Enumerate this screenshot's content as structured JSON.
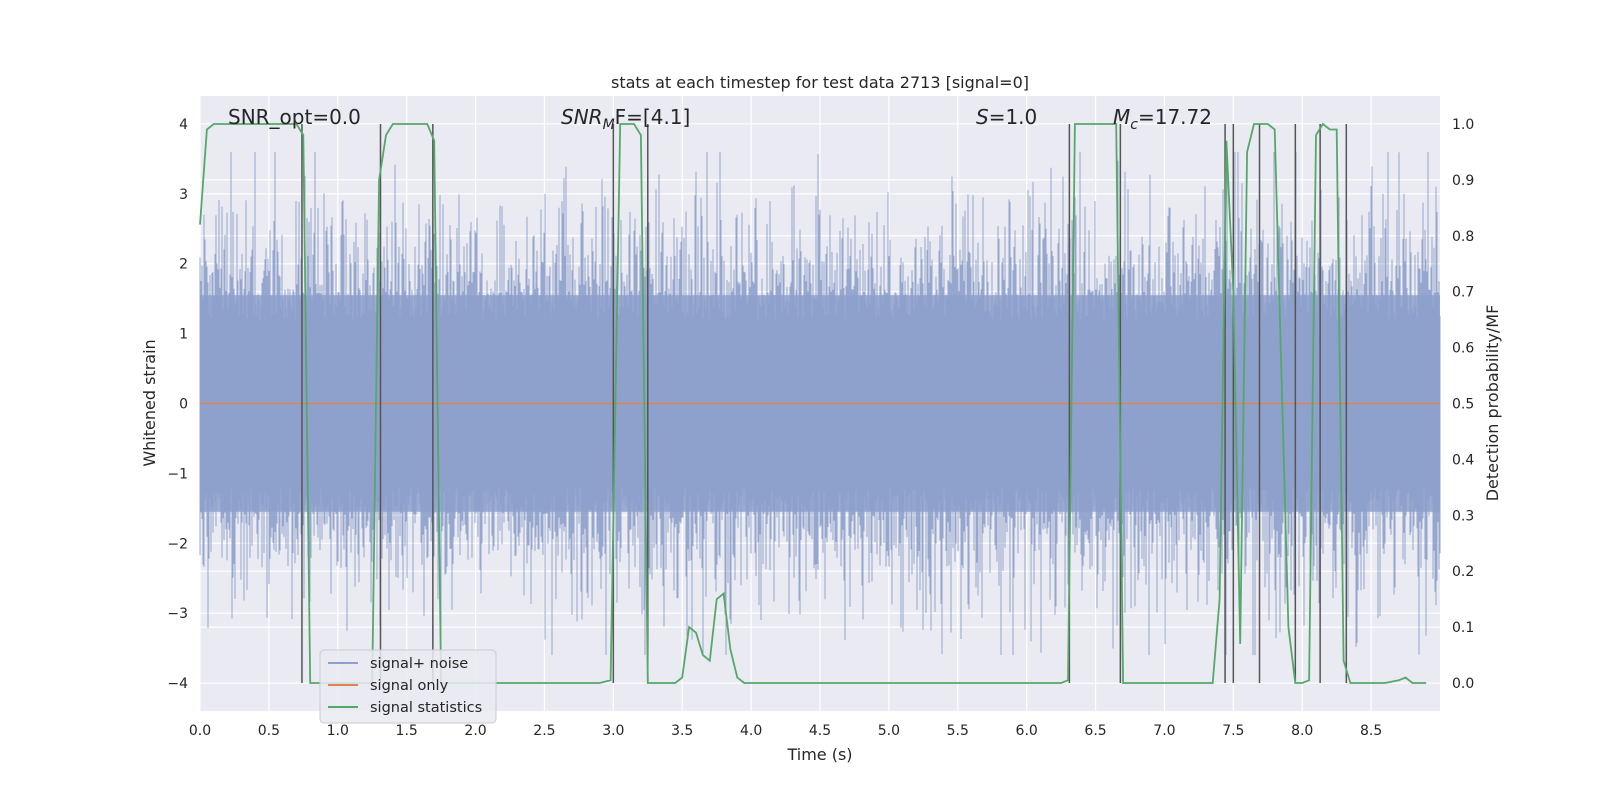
{
  "chart_data": {
    "type": "line",
    "title": "stats at each timestep for test data 2713 [signal=0]",
    "xlabel": "Time (s)",
    "ylabel_left": "Whitened strain",
    "ylabel_right": "Detection probability/MF",
    "xlim": [
      0,
      9
    ],
    "ylim_left": [
      -4.4,
      4.4
    ],
    "ylim_right": [
      -0.05,
      1.05
    ],
    "x_ticks": [
      "0.0",
      "0.5",
      "1.0",
      "1.5",
      "2.0",
      "2.5",
      "3.0",
      "3.5",
      "4.0",
      "4.5",
      "5.0",
      "5.5",
      "6.0",
      "6.5",
      "7.0",
      "7.5",
      "8.0",
      "8.5"
    ],
    "y_left_ticks": [
      "4",
      "3",
      "2",
      "1",
      "0",
      "−1",
      "−2",
      "−3",
      "−4"
    ],
    "y_right_ticks": [
      "1.0",
      "0.9",
      "0.8",
      "0.7",
      "0.6",
      "0.5",
      "0.4",
      "0.3",
      "0.2",
      "0.1",
      "0.0"
    ],
    "grid": true,
    "annotations": {
      "snr_opt": "SNR_opt=0.0",
      "snr_mf_base": "SNR",
      "snr_mf_sub": "M",
      "snr_mf_rest": "F=[4.1]",
      "s_var": "S",
      "s_rest": "=1.0",
      "mc_var": "M",
      "mc_sub": "c",
      "mc_rest": "=17.72"
    },
    "legend": {
      "placement": "lower-left",
      "entries": [
        "signal+ noise",
        "signal only",
        "signal statistics"
      ]
    },
    "colors": {
      "noise": "#8da0cb",
      "signal": "#dd8452",
      "stats": "#55a868",
      "vlines": "#555555",
      "background": "#eaeaf2"
    },
    "series": [
      {
        "name": "signal+ noise",
        "axis": "left",
        "description_values": "whitened strain noise, approx. ±2 typical, extremes to about ±3.5",
        "noise_amplitude_sigma": 1.0
      },
      {
        "name": "signal only",
        "axis": "left",
        "x": [
          0,
          9
        ],
        "y": [
          0,
          0
        ]
      },
      {
        "name": "signal statistics",
        "axis": "right",
        "x": [
          0.0,
          0.05,
          0.1,
          0.2,
          0.3,
          0.4,
          0.5,
          0.6,
          0.7,
          0.75,
          0.8,
          0.85,
          0.9,
          1.0,
          1.1,
          1.2,
          1.25,
          1.3,
          1.35,
          1.4,
          1.5,
          1.6,
          1.65,
          1.7,
          1.75,
          1.8,
          1.9,
          2.0,
          2.5,
          2.9,
          2.98,
          3.05,
          3.1,
          3.15,
          3.2,
          3.25,
          3.3,
          3.35,
          3.45,
          3.5,
          3.55,
          3.6,
          3.65,
          3.7,
          3.75,
          3.8,
          3.85,
          3.9,
          3.95,
          4.0,
          4.05,
          4.5,
          5.0,
          5.5,
          6.0,
          6.25,
          6.3,
          6.35,
          6.4,
          6.45,
          6.5,
          6.6,
          6.65,
          6.7,
          6.75,
          6.8,
          6.9,
          7.0,
          7.2,
          7.35,
          7.4,
          7.45,
          7.5,
          7.55,
          7.6,
          7.65,
          7.7,
          7.75,
          7.8,
          7.9,
          7.95,
          8.0,
          8.05,
          8.1,
          8.15,
          8.2,
          8.25,
          8.3,
          8.35,
          8.4,
          8.5,
          8.6,
          8.7,
          8.75,
          8.8,
          8.9
        ],
        "y": [
          0.82,
          0.99,
          1.0,
          1.0,
          1.0,
          1.0,
          1.0,
          1.0,
          1.0,
          0.98,
          0.0,
          0.0,
          0.0,
          0.0,
          0.0,
          0.0,
          0.0,
          0.9,
          0.98,
          1.0,
          1.0,
          1.0,
          1.0,
          0.97,
          0.0,
          0.0,
          0.0,
          0.0,
          0.0,
          0.0,
          0.005,
          1.0,
          1.0,
          1.0,
          0.98,
          0.0,
          0.0,
          0.0,
          0.0,
          0.01,
          0.1,
          0.09,
          0.05,
          0.04,
          0.15,
          0.16,
          0.06,
          0.01,
          0.0,
          0.0,
          0.0,
          0.0,
          0.0,
          0.0,
          0.0,
          0.0,
          0.005,
          1.0,
          1.0,
          1.0,
          1.0,
          1.0,
          1.0,
          0.0,
          0.0,
          0.0,
          0.0,
          0.0,
          0.0,
          0.0,
          0.15,
          0.97,
          0.7,
          0.07,
          0.95,
          1.0,
          1.0,
          1.0,
          0.99,
          0.1,
          0.0,
          0.0,
          0.005,
          0.98,
          1.0,
          0.99,
          0.99,
          0.04,
          0.0,
          0.0,
          0.0,
          0.0,
          0.005,
          0.01,
          0.0,
          0.0
        ]
      }
    ],
    "vertical_lines_x": [
      0.74,
      1.31,
      1.69,
      3.0,
      3.25,
      6.31,
      6.68,
      7.44,
      7.5,
      7.69,
      7.95,
      8.13,
      8.32
    ]
  }
}
